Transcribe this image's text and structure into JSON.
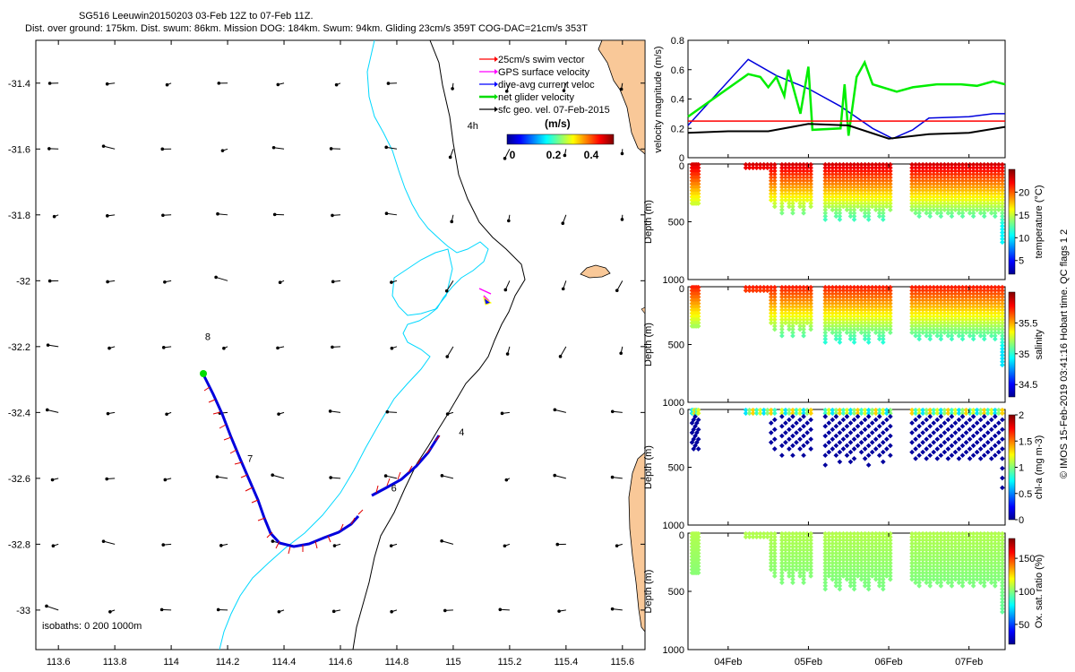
{
  "header": {
    "title_line1": "SG516 Leeuwin20150203 03-Feb 12Z to 07-Feb 11Z.",
    "title_line2": "Dist. over ground: 175km. Dist. swum: 86km. Mission DOG: 184km. Swum: 94km. Gliding 23cm/s 359T COG-DAC=21cm/s 353T"
  },
  "map": {
    "x_ticks": [
      "113.6",
      "113.8",
      "114",
      "114.2",
      "114.4",
      "114.6",
      "114.8",
      "115",
      "115.2",
      "115.4",
      "115.6"
    ],
    "y_ticks": [
      "-31.4",
      "-31.6",
      "-31.8",
      "-32",
      "-32.2",
      "-32.4",
      "-32.6",
      "-32.8",
      "-33"
    ],
    "xlim": [
      113.52,
      115.68
    ],
    "ylim": [
      -33.12,
      -31.27
    ],
    "legend": [
      {
        "label": "25cm/s swim vector",
        "color": "#ff0000"
      },
      {
        "label": "GPS surface velocity",
        "color": "#ff00ff"
      },
      {
        "label": "dive-avg current veloc",
        "color": "#0000ff"
      },
      {
        "label": "net glider velocity",
        "color": "#00dd00"
      },
      {
        "label": "sfc geo. vel. 07-Feb-2015",
        "color": "#000000"
      }
    ],
    "colorbar": {
      "title": "(m/s)",
      "ticks": [
        "0",
        "0.2",
        "0.4"
      ],
      "range": [
        0,
        0.5
      ]
    },
    "day_labels": [
      {
        "text": "8",
        "lon": 114.12,
        "lat": -32.18
      },
      {
        "text": "7",
        "lon": 114.27,
        "lat": -32.55
      },
      {
        "text": "6",
        "lon": 114.78,
        "lat": -32.64
      },
      {
        "text": "4",
        "lon": 115.02,
        "lat": -32.47
      },
      {
        "text": "4h",
        "lon": 115.05,
        "lat": -31.54
      }
    ],
    "isobath_label": "isobaths: 0   200   1000m"
  },
  "chart_data": [
    {
      "type": "line",
      "title": "velocity magnitude",
      "ylabel": "velocity magnitude (m/s)",
      "ylim": [
        0,
        0.8
      ],
      "y_ticks": [
        "0",
        "0.2",
        "0.4",
        "0.6",
        "0.8"
      ],
      "x_ticks": [
        "04Feb",
        "05Feb",
        "06Feb",
        "07Feb"
      ],
      "xlim": [
        3.5,
        7.45
      ],
      "series": [
        {
          "name": "dive-avg current",
          "color": "#0000dd",
          "x": [
            3.5,
            4.25,
            4.6,
            5.0,
            5.4,
            5.8,
            6.05,
            6.3,
            6.5,
            7.0,
            7.3,
            7.45
          ],
          "y": [
            0.22,
            0.67,
            0.56,
            0.47,
            0.35,
            0.2,
            0.13,
            0.19,
            0.27,
            0.28,
            0.3,
            0.3
          ]
        },
        {
          "name": "net glider velocity",
          "color": "#00ee00",
          "x": [
            3.5,
            4.25,
            4.4,
            4.5,
            4.6,
            4.7,
            4.75,
            4.9,
            5.0,
            5.05,
            5.4,
            5.45,
            5.5,
            5.6,
            5.7,
            5.8,
            6.1,
            6.3,
            6.6,
            6.9,
            7.1,
            7.3,
            7.45
          ],
          "y": [
            0.28,
            0.57,
            0.55,
            0.48,
            0.55,
            0.42,
            0.6,
            0.3,
            0.62,
            0.19,
            0.2,
            0.5,
            0.15,
            0.55,
            0.65,
            0.5,
            0.45,
            0.48,
            0.5,
            0.5,
            0.49,
            0.52,
            0.5
          ]
        },
        {
          "name": "25cm/s swim",
          "color": "#ff0000",
          "x": [
            3.5,
            7.45
          ],
          "y": [
            0.25,
            0.25
          ]
        },
        {
          "name": "surface geostrophic",
          "color": "#000000",
          "x": [
            3.5,
            4.0,
            4.5,
            5.0,
            5.5,
            6.0,
            6.5,
            7.0,
            7.45
          ],
          "y": [
            0.17,
            0.18,
            0.18,
            0.23,
            0.22,
            0.13,
            0.16,
            0.17,
            0.21
          ]
        }
      ]
    },
    {
      "type": "scatter",
      "title": "temperature",
      "ylabel": "Depth (m)",
      "ylim": [
        0,
        1000
      ],
      "y_ticks": [
        "0",
        "500",
        "1000"
      ],
      "cb_label": "temperature (°C)",
      "cb_ticks": [
        "5",
        "10",
        "15",
        "20"
      ],
      "cb_range": [
        2,
        25
      ]
    },
    {
      "type": "scatter",
      "title": "salinity",
      "ylabel": "Depth (m)",
      "ylim": [
        0,
        1000
      ],
      "y_ticks": [
        "0",
        "500",
        "1000"
      ],
      "cb_label": "salinity",
      "cb_ticks": [
        "34.5",
        "35",
        "35.5"
      ],
      "cb_range": [
        34.3,
        36.0
      ]
    },
    {
      "type": "scatter",
      "title": "chl-a",
      "ylabel": "Depth (m)",
      "ylim": [
        0,
        1000
      ],
      "y_ticks": [
        "0",
        "500",
        "1000"
      ],
      "cb_label": "chl-a (mg m-3)",
      "cb_ticks": [
        "0",
        "0.5",
        "1",
        "1.5",
        "2"
      ],
      "cb_range": [
        0,
        2
      ]
    },
    {
      "type": "scatter",
      "title": "oxygen saturation",
      "ylabel": "Depth (m)",
      "ylim": [
        0,
        1000
      ],
      "y_ticks": [
        "0",
        "500",
        "1000"
      ],
      "cb_label": "Ox. sat. ratio (%)",
      "cb_ticks": [
        "50",
        "100",
        "150"
      ],
      "cb_range": [
        20,
        180
      ]
    }
  ],
  "credit": "© IMOS 15-Feb-2019 03:41:16 Hobart time. QC flags 1  2"
}
